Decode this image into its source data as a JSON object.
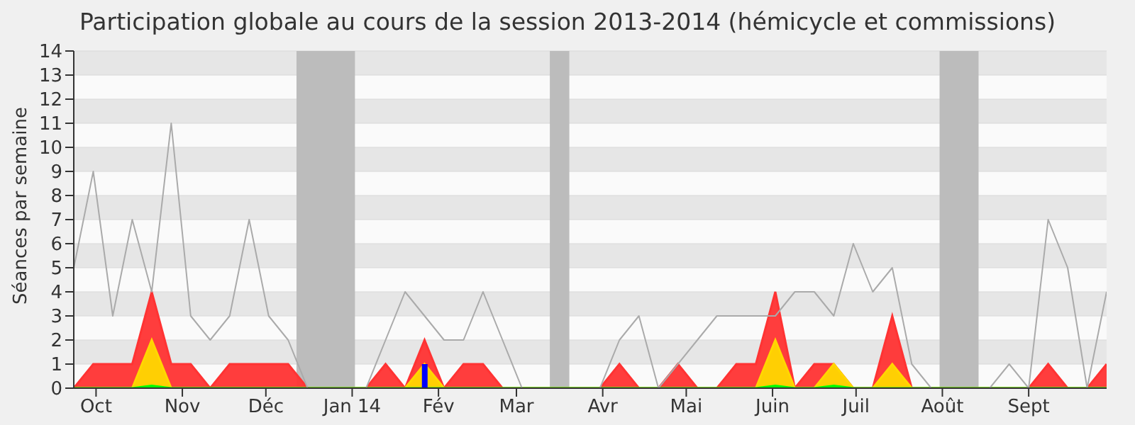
{
  "chart_data": {
    "type": "area",
    "title": "Participation globale au cours de la session 2013-2014 (hémicycle et commissions)",
    "ylabel": "Séances par semaine",
    "x": [
      "2013-09-23",
      "2013-09-30",
      "2013-10-07",
      "2013-10-14",
      "2013-10-21",
      "2013-10-28",
      "2013-11-04",
      "2013-11-11",
      "2013-11-18",
      "2013-11-25",
      "2013-12-02",
      "2013-12-09",
      "2013-12-16",
      "2013-12-23",
      "2013-12-30",
      "2014-01-06",
      "2014-01-13",
      "2014-01-20",
      "2014-01-27",
      "2014-02-03",
      "2014-02-10",
      "2014-02-17",
      "2014-02-24",
      "2014-03-03",
      "2014-03-10",
      "2014-03-17",
      "2014-03-24",
      "2014-03-31",
      "2014-04-07",
      "2014-04-14",
      "2014-04-21",
      "2014-04-28",
      "2014-05-05",
      "2014-05-12",
      "2014-05-19",
      "2014-05-26",
      "2014-06-02",
      "2014-06-09",
      "2014-06-16",
      "2014-06-23",
      "2014-06-30",
      "2014-07-07",
      "2014-07-14",
      "2014-07-21",
      "2014-07-28",
      "2014-08-04",
      "2014-08-11",
      "2014-08-18",
      "2014-08-25",
      "2014-09-01",
      "2014-09-08",
      "2014-09-15",
      "2014-09-22",
      "2014-09-29"
    ],
    "series": [
      {
        "type": "line",
        "color": "#aaaaaa",
        "values": [
          5,
          9,
          3,
          7,
          4,
          11,
          3,
          2,
          3,
          7,
          3,
          2,
          0,
          0,
          0,
          0,
          2,
          4,
          3,
          2,
          2,
          4,
          2,
          0,
          0,
          0,
          0,
          0,
          2,
          3,
          0,
          1,
          2,
          3,
          3,
          3,
          3,
          4,
          4,
          3,
          6,
          4,
          5,
          1,
          0,
          0,
          0,
          0,
          1,
          0,
          7,
          5,
          0,
          4
        ]
      },
      {
        "color": "#ff3333",
        "values": [
          0,
          1,
          1,
          1,
          4,
          1,
          1,
          0,
          1,
          1,
          1,
          1,
          0,
          0,
          0,
          0,
          1,
          0,
          2,
          0,
          1,
          1,
          0,
          0,
          0,
          0,
          0,
          0,
          1,
          0,
          0,
          1,
          0,
          0,
          1,
          1,
          4,
          0,
          1,
          1,
          0,
          0,
          3,
          0,
          0,
          0,
          0,
          0,
          0,
          0,
          1,
          0,
          0,
          1
        ]
      },
      {
        "color": "#ffd700",
        "values": [
          0,
          0,
          0,
          0,
          2,
          0,
          0,
          0,
          0,
          0,
          0,
          0,
          0,
          0,
          0,
          0,
          0,
          0,
          1,
          0,
          0,
          0,
          0,
          0,
          0,
          0,
          0,
          0,
          0,
          0,
          0,
          0,
          0,
          0,
          0,
          0,
          2,
          0,
          0,
          1,
          0,
          0,
          1,
          0,
          0,
          0,
          0,
          0,
          0,
          0,
          0,
          0,
          0,
          0
        ]
      },
      {
        "color": "#00ff00",
        "values": [
          0,
          0,
          0,
          0,
          0.1,
          0,
          0,
          0,
          0,
          0,
          0,
          0,
          0,
          0,
          0,
          0,
          0,
          0,
          0,
          0,
          0,
          0,
          0,
          0,
          0,
          0,
          0,
          0,
          0,
          0,
          0,
          0,
          0,
          0,
          0,
          0,
          0.1,
          0,
          0,
          0.1,
          0,
          0,
          0,
          0,
          0,
          0,
          0,
          0,
          0,
          0,
          0,
          0,
          0,
          0
        ]
      },
      {
        "type": "bar",
        "color": "#0000ff",
        "values": [
          null,
          null,
          null,
          null,
          null,
          null,
          null,
          null,
          null,
          null,
          null,
          null,
          null,
          null,
          null,
          null,
          null,
          null,
          1,
          null,
          null,
          null,
          null,
          null,
          null,
          null,
          null,
          null,
          null,
          null,
          null,
          null,
          null,
          null,
          null,
          null,
          null,
          null,
          null,
          null,
          null,
          null,
          null,
          null,
          null,
          null,
          null,
          null,
          null,
          null,
          null,
          null,
          null,
          null
        ]
      }
    ],
    "xlim": [
      "2013-09-23",
      "2014-09-29"
    ],
    "xticks": [
      {
        "value": "2013-10-01",
        "label": "Oct"
      },
      {
        "value": "2013-11-01",
        "label": "Nov"
      },
      {
        "value": "2013-12-01",
        "label": "Déc"
      },
      {
        "value": "2014-01-01",
        "label": "Jan 14"
      },
      {
        "value": "2014-02-01",
        "label": "Fév"
      },
      {
        "value": "2014-03-01",
        "label": "Mar"
      },
      {
        "value": "2014-04-01",
        "label": "Avr"
      },
      {
        "value": "2014-05-01",
        "label": "Mai"
      },
      {
        "value": "2014-06-01",
        "label": "Juin"
      },
      {
        "value": "2014-07-01",
        "label": "Juil"
      },
      {
        "value": "2014-08-01",
        "label": "Août"
      },
      {
        "value": "2014-09-01",
        "label": "Sept"
      }
    ],
    "ylim": [
      0,
      14
    ],
    "yticks": [
      0,
      1,
      2,
      3,
      4,
      5,
      6,
      7,
      8,
      9,
      10,
      11,
      12,
      13,
      14
    ],
    "grid": "y",
    "bands": [
      {
        "axis": "x",
        "from": "2013-12-12",
        "to": "2014-01-02",
        "color": "#bcbcbc"
      },
      {
        "axis": "x",
        "from": "2014-03-13",
        "to": "2014-03-20",
        "color": "#bcbcbc"
      },
      {
        "axis": "x",
        "from": "2014-07-31",
        "to": "2014-08-14",
        "color": "#bcbcbc"
      }
    ]
  }
}
